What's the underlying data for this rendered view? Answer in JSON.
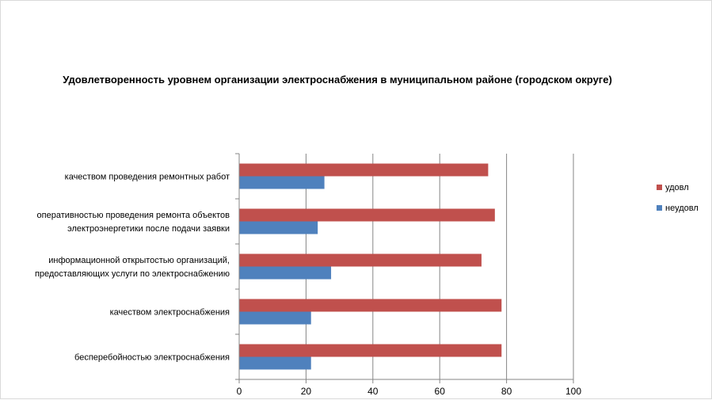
{
  "chart_data": {
    "type": "bar",
    "orientation": "horizontal",
    "title": "Удовлетворенность уровнем организации электроснабжения в муниципальном районе (городском округе)",
    "categories": [
      [
        "качеством проведения ремонтных работ"
      ],
      [
        "оперативностью проведения ремонта объектов",
        "электроэнергетики после подачи заявки"
      ],
      [
        "информационной открытостью организаций,",
        "предоставляющих услуги по электроснабжению"
      ],
      [
        "качеством электроснабжения"
      ],
      [
        "бесперебойностью электроснабжения"
      ]
    ],
    "series": [
      {
        "name": "удовл",
        "color": "#c0504d",
        "values": [
          74.5,
          76.5,
          72.5,
          78.5,
          78.5
        ]
      },
      {
        "name": "неудовл",
        "color": "#4f81bd",
        "values": [
          25.5,
          23.5,
          27.5,
          21.5,
          21.5
        ]
      }
    ],
    "xlim": [
      0,
      100
    ],
    "xticks": [
      0,
      20,
      40,
      60,
      80,
      100
    ],
    "grid": true,
    "legend_position": "right"
  }
}
